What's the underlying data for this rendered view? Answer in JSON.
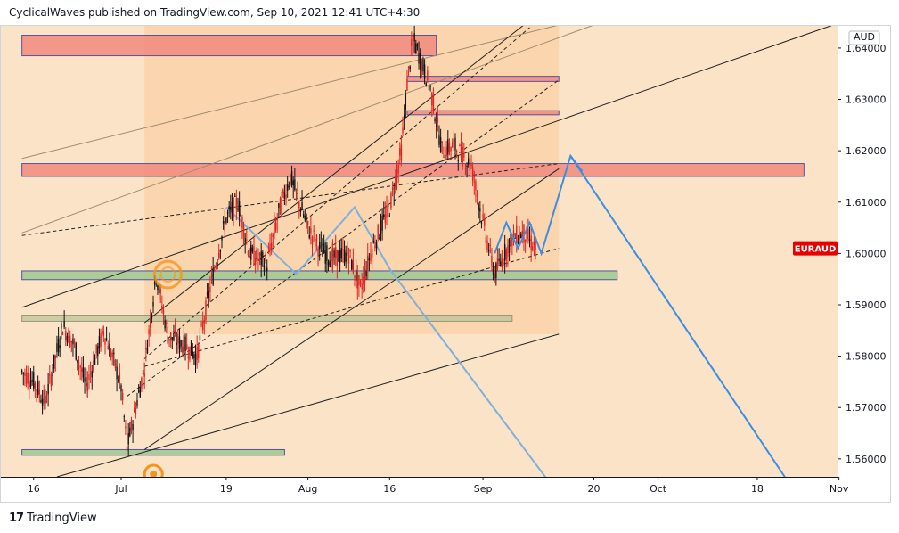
{
  "header": {
    "publisher_line": "CyclicalWaves published on TradingView.com, Sep 10, 2021 12:41 UTC+4:30"
  },
  "footer": {
    "logo_text": "17",
    "brand": "TradingView"
  },
  "colors": {
    "background": "#fbe3c8",
    "channel_fill": "#f9cfa1",
    "resistance_zone": "#f28b7e",
    "support_zone": "#9fc98f",
    "weak_zone": "#c5c8a0",
    "projection_line": "#3d8ee0",
    "candle_up": "#111111",
    "candle_down": "#e22222",
    "label_bg": "#e60000",
    "cycle_marker": "#f7931a"
  },
  "chart_data": {
    "type": "candlestick",
    "symbol_label": "EURAUD",
    "currency_label": "AUD",
    "y_axis": {
      "ticks": [
        "1.64000",
        "1.63000",
        "1.62000",
        "1.61000",
        "1.60000",
        "1.59000",
        "1.58000",
        "1.57000",
        "1.56000"
      ],
      "range": [
        1.5565,
        1.6445
      ]
    },
    "x_axis": {
      "ticks": [
        "16",
        "Jul",
        "19",
        "Aug",
        "16",
        "Sep",
        "20",
        "Oct",
        "18",
        "Nov"
      ]
    },
    "price_path": [
      [
        "2021-06-14",
        1.577
      ],
      [
        "2021-06-16",
        1.575
      ],
      [
        "2021-06-18",
        1.571
      ],
      [
        "2021-06-21",
        1.586
      ],
      [
        "2021-06-23",
        1.582
      ],
      [
        "2021-06-25",
        1.574
      ],
      [
        "2021-06-28",
        1.585
      ],
      [
        "2021-06-30",
        1.578
      ],
      [
        "2021-07-01",
        1.574
      ],
      [
        "2021-07-02",
        1.562
      ],
      [
        "2021-07-05",
        1.578
      ],
      [
        "2021-07-07",
        1.596
      ],
      [
        "2021-07-09",
        1.584
      ],
      [
        "2021-07-12",
        1.582
      ],
      [
        "2021-07-14",
        1.58
      ],
      [
        "2021-07-16",
        1.592
      ],
      [
        "2021-07-19",
        1.607
      ],
      [
        "2021-07-21",
        1.61
      ],
      [
        "2021-07-23",
        1.6
      ],
      [
        "2021-07-26",
        1.598
      ],
      [
        "2021-07-28",
        1.608
      ],
      [
        "2021-07-30",
        1.615
      ],
      [
        "2021-08-02",
        1.605
      ],
      [
        "2021-08-04",
        1.601
      ],
      [
        "2021-08-06",
        1.599
      ],
      [
        "2021-08-09",
        1.6
      ],
      [
        "2021-08-11",
        1.593
      ],
      [
        "2021-08-13",
        1.601
      ],
      [
        "2021-08-16",
        1.609
      ],
      [
        "2021-08-18",
        1.62
      ],
      [
        "2021-08-19",
        1.633
      ],
      [
        "2021-08-20",
        1.642
      ],
      [
        "2021-08-23",
        1.632
      ],
      [
        "2021-08-25",
        1.62
      ],
      [
        "2021-08-27",
        1.621
      ],
      [
        "2021-08-30",
        1.617
      ],
      [
        "2021-09-01",
        1.606
      ],
      [
        "2021-09-03",
        1.596
      ],
      [
        "2021-09-06",
        1.603
      ],
      [
        "2021-09-08",
        1.604
      ],
      [
        "2021-09-10",
        1.601
      ]
    ],
    "zones": [
      {
        "type": "resistance",
        "x_from": "2021-06-14",
        "x_to": "2021-08-24",
        "y_from": 1.6385,
        "y_to": 1.6425
      },
      {
        "type": "resistance",
        "x_from": "2021-06-14",
        "x_to": "2021-10-26",
        "y_from": 1.615,
        "y_to": 1.6175
      },
      {
        "type": "resistance",
        "x_from": "2021-08-19",
        "x_to": "2021-09-14",
        "y_from": 1.6335,
        "y_to": 1.6345
      },
      {
        "type": "resistance",
        "x_from": "2021-08-19",
        "x_to": "2021-09-14",
        "y_from": 1.627,
        "y_to": 1.6278
      },
      {
        "type": "support",
        "x_from": "2021-06-14",
        "x_to": "2021-09-24",
        "y_from": 1.5949,
        "y_to": 1.5966
      },
      {
        "type": "weak",
        "x_from": "2021-06-14",
        "x_to": "2021-09-06",
        "y_from": 1.5868,
        "y_to": 1.588
      },
      {
        "type": "support",
        "x_from": "2021-06-14",
        "x_to": "2021-07-29",
        "y_from": 1.5607,
        "y_to": 1.5618
      }
    ],
    "projection": [
      [
        "2021-09-03",
        1.6
      ],
      [
        "2021-09-05",
        1.606
      ],
      [
        "2021-09-07",
        1.601
      ],
      [
        "2021-09-09",
        1.606
      ],
      [
        "2021-09-11",
        1.6
      ],
      [
        "2021-09-16",
        1.619
      ],
      [
        "2021-10-23",
        1.556
      ]
    ],
    "projection_secondary": [
      [
        "2021-09-16",
        1.619
      ],
      [
        "2021-09-18",
        1.616
      ]
    ],
    "old_projection": [
      [
        "2021-07-19",
        1.609
      ],
      [
        "2021-07-31",
        1.596
      ],
      [
        "2021-08-10",
        1.609
      ],
      [
        "2021-08-16",
        1.597
      ],
      [
        "2021-09-12",
        1.556
      ]
    ],
    "channels": [
      {
        "kind": "upper",
        "from": [
          "2021-06-14",
          1.6185
        ],
        "to": [
          "2021-09-14",
          1.6445
        ]
      },
      {
        "kind": "mid",
        "from": [
          "2021-06-14",
          1.604
        ],
        "to": [
          "2021-09-20",
          1.6445
        ]
      },
      {
        "kind": "lower",
        "from": [
          "2021-06-14",
          1.5895
        ],
        "to": [
          "2021-10-31",
          1.6445
        ]
      },
      {
        "kind": "fork-upper",
        "from": [
          "2021-07-05",
          1.5865
        ],
        "to": [
          "2021-09-08",
          1.6445
        ]
      },
      {
        "kind": "fork-lower",
        "from": [
          "2021-07-05",
          1.5618
        ],
        "to": [
          "2021-09-14",
          1.6165
        ]
      },
      {
        "kind": "baseline",
        "from": [
          "2021-06-20",
          1.5565
        ],
        "to": [
          "2021-09-14",
          1.5843
        ]
      },
      {
        "kind": "dashed-1",
        "from": [
          "2021-07-02",
          1.5722
        ],
        "to": [
          "2021-09-14",
          1.6338
        ]
      },
      {
        "kind": "dashed-2",
        "from": [
          "2021-07-05",
          1.5795
        ],
        "to": [
          "2021-09-09",
          1.644
        ]
      },
      {
        "kind": "dashed-3",
        "from": [
          "2021-06-14",
          1.6035
        ],
        "to": [
          "2021-09-14",
          1.6175
        ]
      },
      {
        "kind": "dashed-4",
        "from": [
          "2021-07-05",
          1.578
        ],
        "to": [
          "2021-09-14",
          1.601
        ]
      }
    ],
    "cycle_markers": [
      "2021-07-09",
      "2021-07-05"
    ]
  }
}
